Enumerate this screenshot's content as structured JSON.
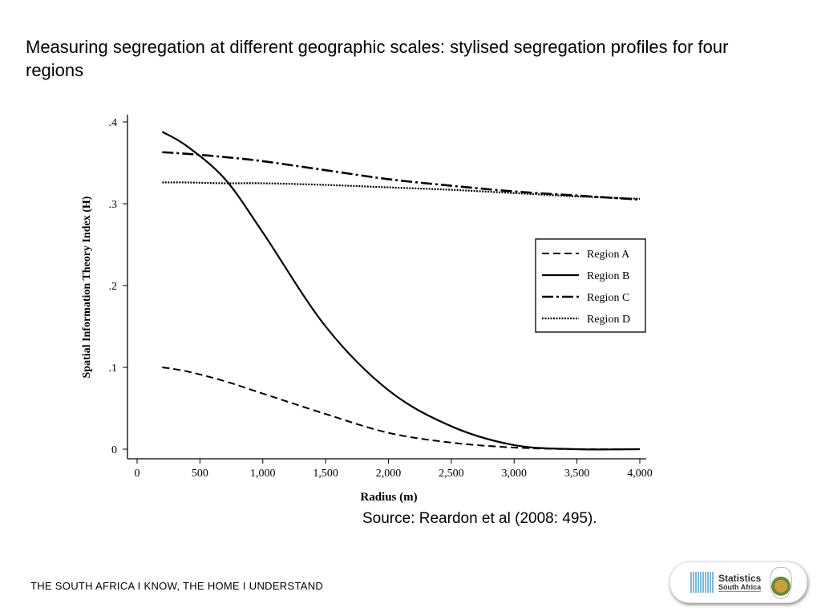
{
  "title": "Measuring segregation at different geographic scales: stylised segregation profiles for four regions",
  "source": "Source: Reardon et al (2008: 495).",
  "footer": "THE SOUTH AFRICA I KNOW, THE HOME I UNDERSTAND",
  "logo": {
    "line1": "Statistics",
    "line2": "South Africa"
  },
  "chart_data": {
    "type": "line",
    "title": "",
    "xlabel": "Radius (m)",
    "ylabel": "Spatial Information Theory Index (H)",
    "xlim": [
      0,
      4000
    ],
    "ylim": [
      0,
      0.4
    ],
    "xticks": [
      "0",
      "500",
      "1,000",
      "1,500",
      "2,000",
      "2,500",
      "3,000",
      "3,500",
      "4,000"
    ],
    "yticks": [
      "0",
      ".1",
      ".2",
      ".3",
      ".4"
    ],
    "grid": false,
    "legend_position": "right",
    "x": [
      200,
      400,
      700,
      1000,
      1500,
      2000,
      2500,
      3000,
      3500,
      4000
    ],
    "series": [
      {
        "name": "Region A",
        "style": "dashed",
        "values": [
          0.1,
          0.095,
          0.083,
          0.068,
          0.043,
          0.02,
          0.008,
          0.002,
          0.0,
          0.0
        ]
      },
      {
        "name": "Region B",
        "style": "solid",
        "values": [
          0.388,
          0.37,
          0.33,
          0.265,
          0.15,
          0.072,
          0.028,
          0.005,
          0.0,
          0.0
        ]
      },
      {
        "name": "Region C",
        "style": "dash-dot",
        "values": [
          0.363,
          0.361,
          0.357,
          0.352,
          0.341,
          0.33,
          0.322,
          0.315,
          0.31,
          0.305
        ]
      },
      {
        "name": "Region D",
        "style": "dotted",
        "values": [
          0.326,
          0.326,
          0.325,
          0.325,
          0.323,
          0.32,
          0.317,
          0.313,
          0.309,
          0.306
        ]
      }
    ],
    "colors": {
      "lines": "#000000"
    }
  }
}
